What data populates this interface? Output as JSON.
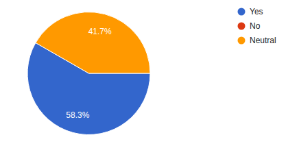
{
  "chart_data": {
    "type": "pie",
    "categories": [
      "Yes",
      "No",
      "Neutral"
    ],
    "values": [
      58.3,
      0,
      41.7
    ],
    "value_labels": [
      "58.3%",
      null,
      "41.7%"
    ],
    "colors": [
      "#3366cc",
      "#dc3912",
      "#ff9900"
    ],
    "data_labels": true,
    "legend": "right"
  }
}
